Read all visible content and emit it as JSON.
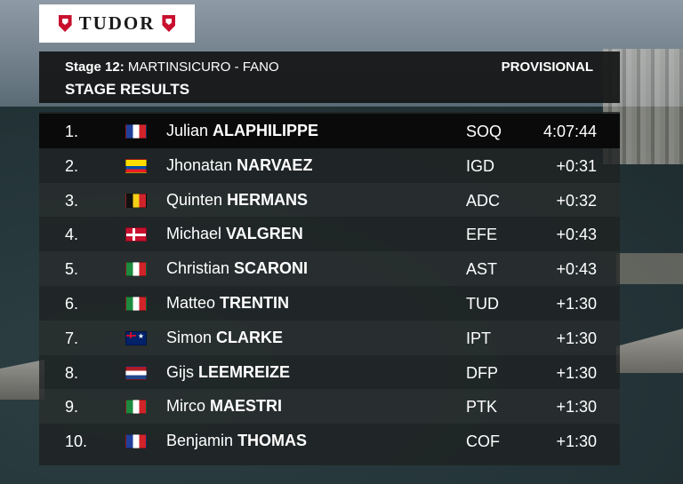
{
  "brand": {
    "name": "TUDOR"
  },
  "header": {
    "stage_label": "Stage 12:",
    "route": "MARTINSICURO - FANO",
    "title": "STAGE RESULTS",
    "status": "PROVISIONAL"
  },
  "results": [
    {
      "pos": "1.",
      "flag": "france-flag-icon",
      "first": "Julian",
      "last": "ALAPHILIPPE",
      "team": "SOQ",
      "time": "4:07:44"
    },
    {
      "pos": "2.",
      "flag": "ecuador-flag-icon",
      "first": "Jhonatan",
      "last": "NARVAEZ",
      "team": "IGD",
      "time": "+0:31"
    },
    {
      "pos": "3.",
      "flag": "belgium-flag-icon",
      "first": "Quinten",
      "last": "HERMANS",
      "team": "ADC",
      "time": "+0:32"
    },
    {
      "pos": "4.",
      "flag": "denmark-flag-icon",
      "first": "Michael",
      "last": "VALGREN",
      "team": "EFE",
      "time": "+0:43"
    },
    {
      "pos": "5.",
      "flag": "italy-flag-icon",
      "first": "Christian",
      "last": "SCARONI",
      "team": "AST",
      "time": "+0:43"
    },
    {
      "pos": "6.",
      "flag": "italy-flag-icon",
      "first": "Matteo",
      "last": "TRENTIN",
      "team": "TUD",
      "time": "+1:30"
    },
    {
      "pos": "7.",
      "flag": "australia-flag-icon",
      "first": "Simon",
      "last": "CLARKE",
      "team": "IPT",
      "time": "+1:30"
    },
    {
      "pos": "8.",
      "flag": "netherlands-flag-icon",
      "first": "Gijs",
      "last": "LEEMREIZE",
      "team": "DFP",
      "time": "+1:30"
    },
    {
      "pos": "9.",
      "flag": "italy-flag-icon",
      "first": "Mirco",
      "last": "MAESTRI",
      "team": "PTK",
      "time": "+1:30"
    },
    {
      "pos": "10.",
      "flag": "france-flag-icon",
      "first": "Benjamin",
      "last": "THOMAS",
      "team": "COF",
      "time": "+1:30"
    }
  ],
  "colors": {
    "brand_red": "#c8102e",
    "panel": "#141616",
    "highlight_row": "#0a0a0a"
  }
}
